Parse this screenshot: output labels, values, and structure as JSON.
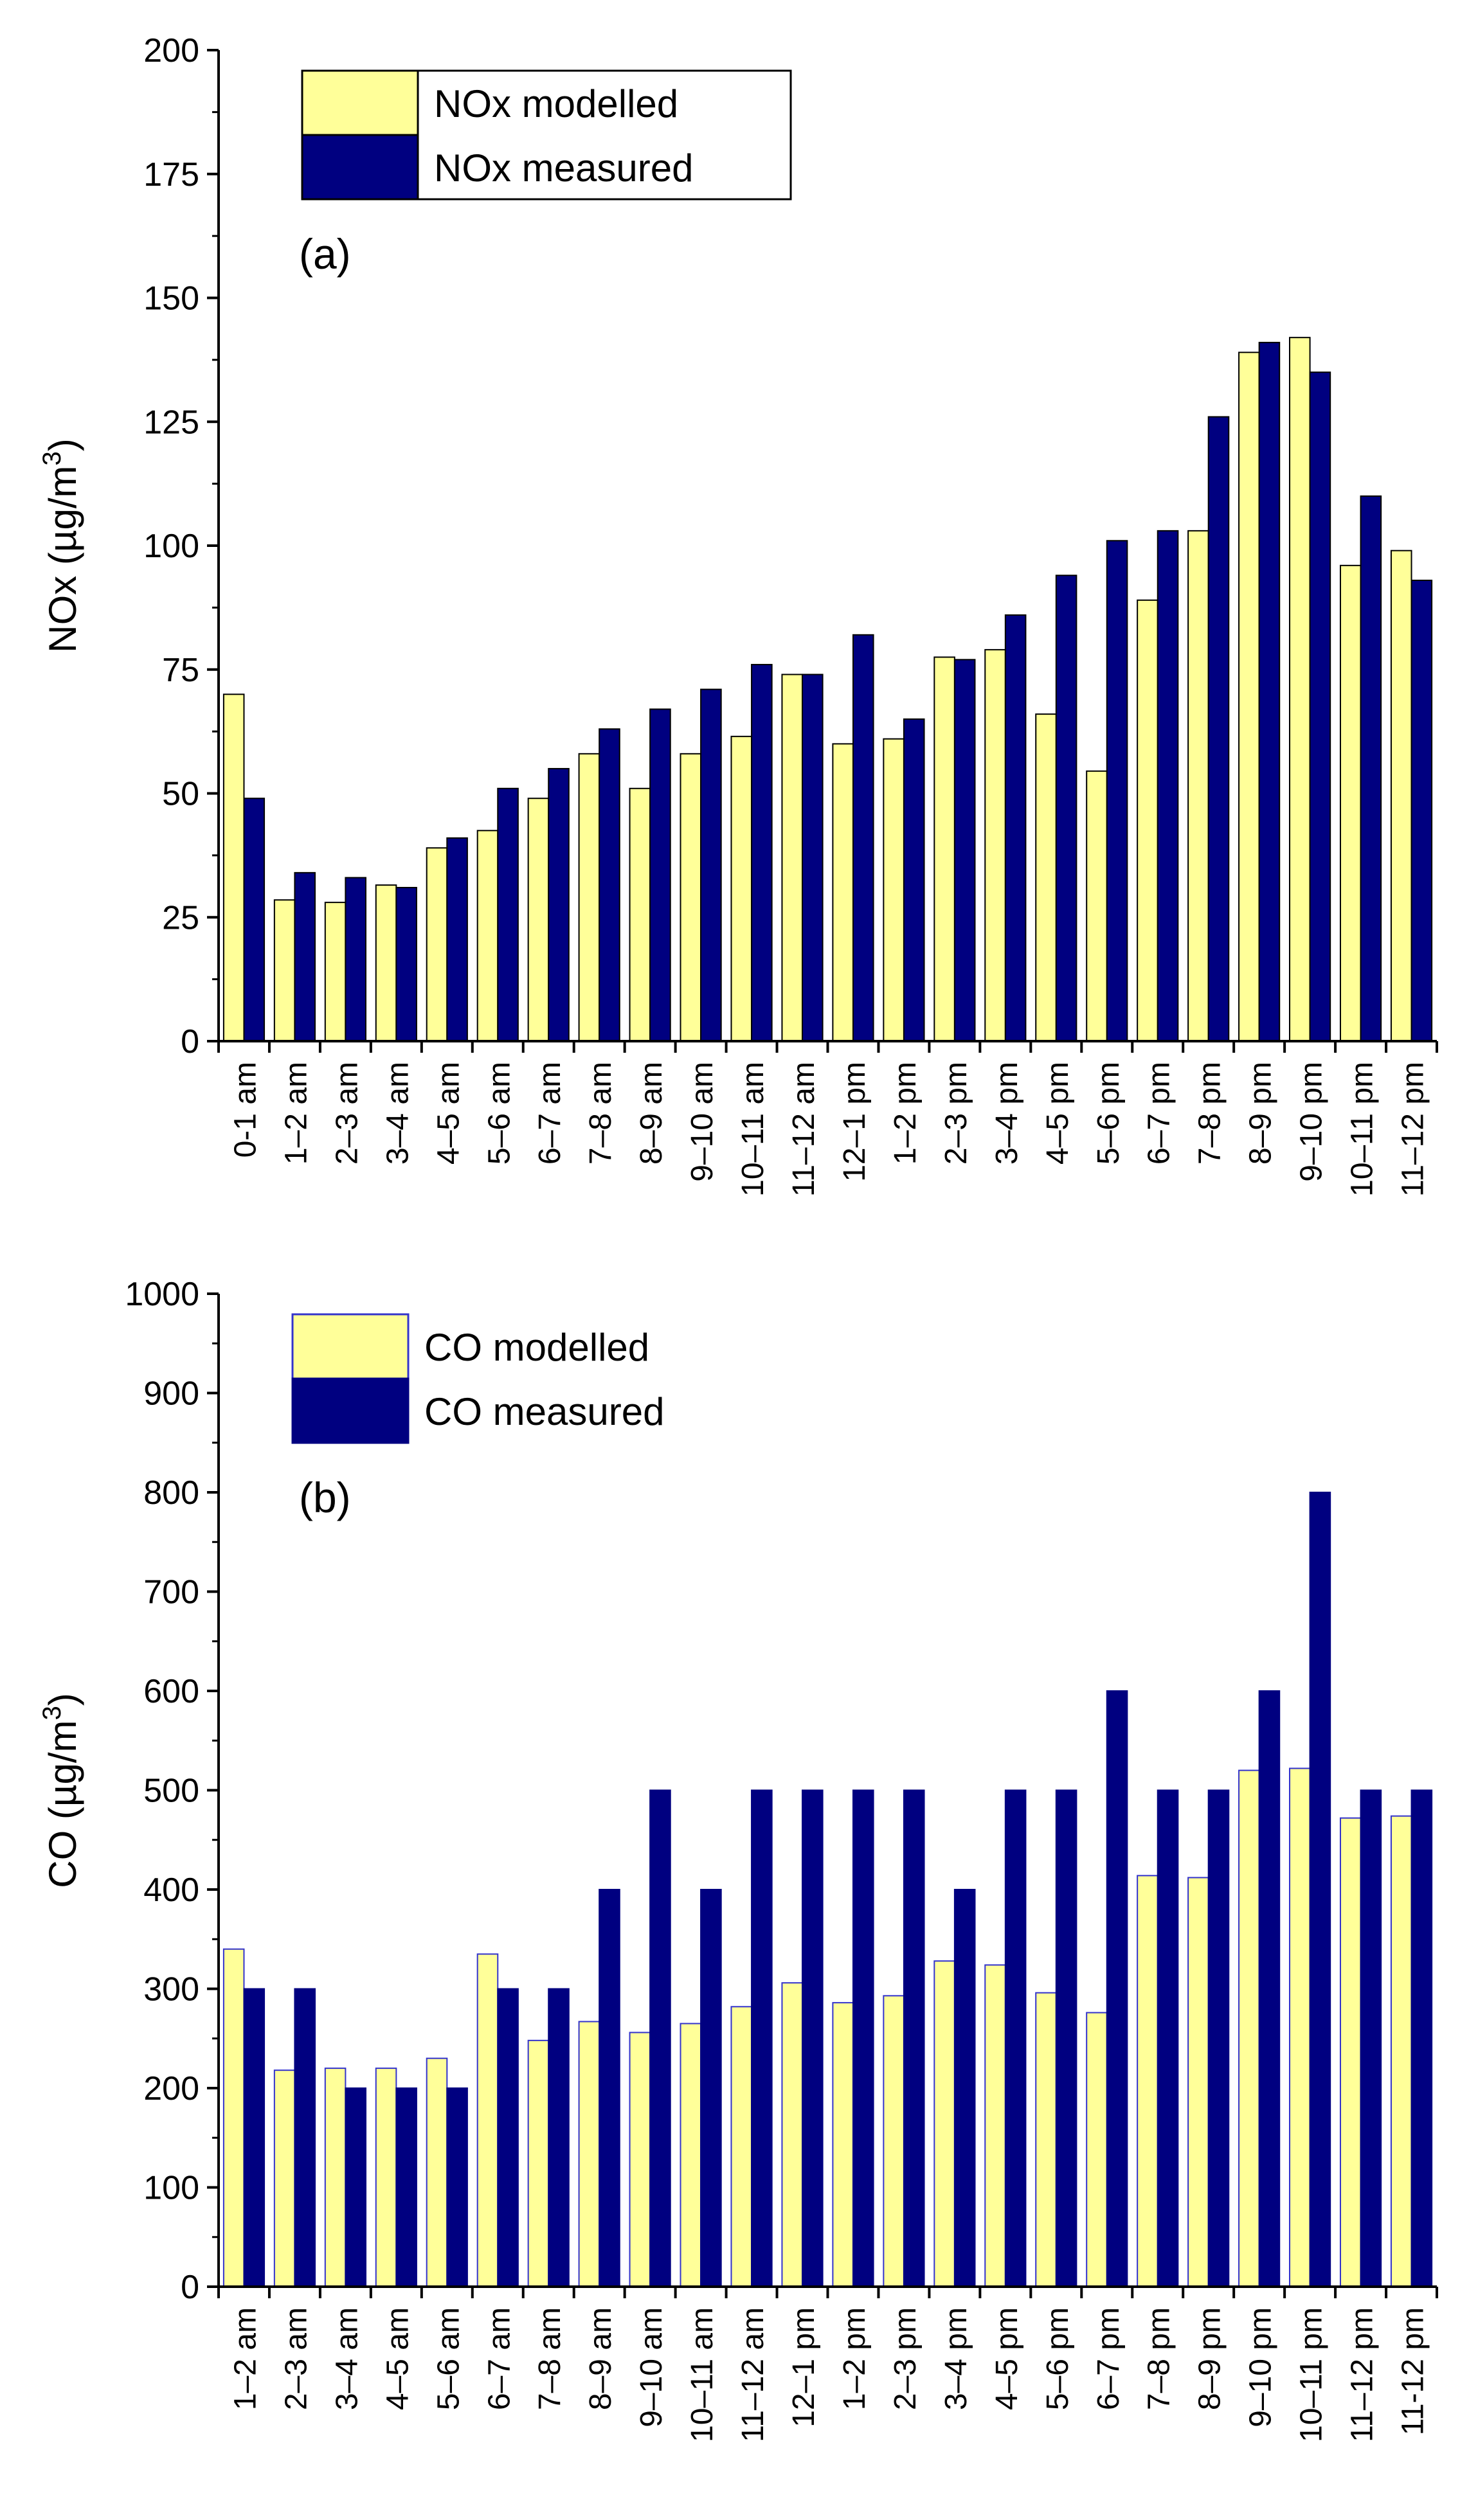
{
  "chart_data": [
    {
      "type": "bar",
      "panel_label": "(a)",
      "title": "",
      "xlabel": "",
      "ylabel_main": "NOx (µg/m",
      "ylabel_sup": "3",
      "ylabel_end": ")",
      "ylim": [
        0,
        200
      ],
      "yticks": [
        0,
        25,
        50,
        75,
        100,
        125,
        150,
        175,
        200
      ],
      "categories": [
        "0-1 am",
        "1–2 am",
        "2–3 am",
        "3–4 am",
        "4–5 am",
        "5–6 am",
        "6–7 am",
        "7–8 am",
        "8–9 am",
        "9–10 am",
        "10–11 am",
        "11–12 am",
        "12–1 pm",
        "1–2 pm",
        "2–3 pm",
        "3–4 pm",
        "4–5 pm",
        "5–6 pm",
        "6–7 pm",
        "7–8 pm",
        "8–9 pm",
        "9–10 pm",
        "10–11 pm",
        "11–12 pm"
      ],
      "legend_position": "top-left",
      "series": [
        {
          "name": "NOx modelled",
          "color": "#ffff99",
          "stroke": "#000000",
          "values": [
            70,
            28.5,
            28,
            31.5,
            39,
            42.5,
            49,
            58,
            51,
            58,
            61.5,
            74,
            60,
            61,
            77.5,
            79,
            66,
            54.5,
            89,
            103,
            139,
            142,
            96,
            99
          ]
        },
        {
          "name": "NOx measured",
          "color": "#000080",
          "stroke": "#000000",
          "values": [
            49,
            34,
            33,
            31,
            41,
            51,
            55,
            63,
            67,
            71,
            76,
            74,
            82,
            65,
            77,
            86,
            94,
            101,
            103,
            126,
            141,
            135,
            110,
            93
          ]
        }
      ]
    },
    {
      "type": "bar",
      "panel_label": "(b)",
      "title": "",
      "xlabel": "",
      "ylabel_main": "CO (µg/m",
      "ylabel_sup": "3",
      "ylabel_end": ")",
      "ylim": [
        0,
        1000
      ],
      "yticks": [
        0,
        100,
        200,
        300,
        400,
        500,
        600,
        700,
        800,
        900,
        1000
      ],
      "categories": [
        "1–2 am",
        "2–3 am",
        "3–4 am",
        "4–5 am",
        "5–6 am",
        "6–7 am",
        "7–8 am",
        "8–9 am",
        "9–10 am",
        "10–11 am",
        "11–12 am",
        "12–1 pm",
        "1–2 pm",
        "2–3 pm",
        "3–4 pm",
        "4–5 pm",
        "5–6 pm",
        "6–7 pm",
        "7–8 pm",
        "8–9 pm",
        "9–10 pm",
        "10–11 pm",
        "11–12 pm",
        "11-12 pm"
      ],
      "legend_position": "top-left",
      "series": [
        {
          "name": "CO modelled",
          "color": "#ffff99",
          "stroke": "#3333cc",
          "values": [
            340,
            218,
            220,
            220,
            230,
            335,
            248,
            267,
            256,
            265,
            282,
            306,
            286,
            293,
            328,
            324,
            296,
            276,
            414,
            412,
            520,
            522,
            472,
            474
          ]
        },
        {
          "name": "CO measured",
          "color": "#000080",
          "stroke": "#000080",
          "values": [
            300,
            300,
            200,
            200,
            200,
            300,
            300,
            400,
            500,
            400,
            500,
            500,
            500,
            500,
            400,
            500,
            500,
            600,
            500,
            500,
            600,
            800,
            500,
            500
          ]
        }
      ]
    }
  ]
}
